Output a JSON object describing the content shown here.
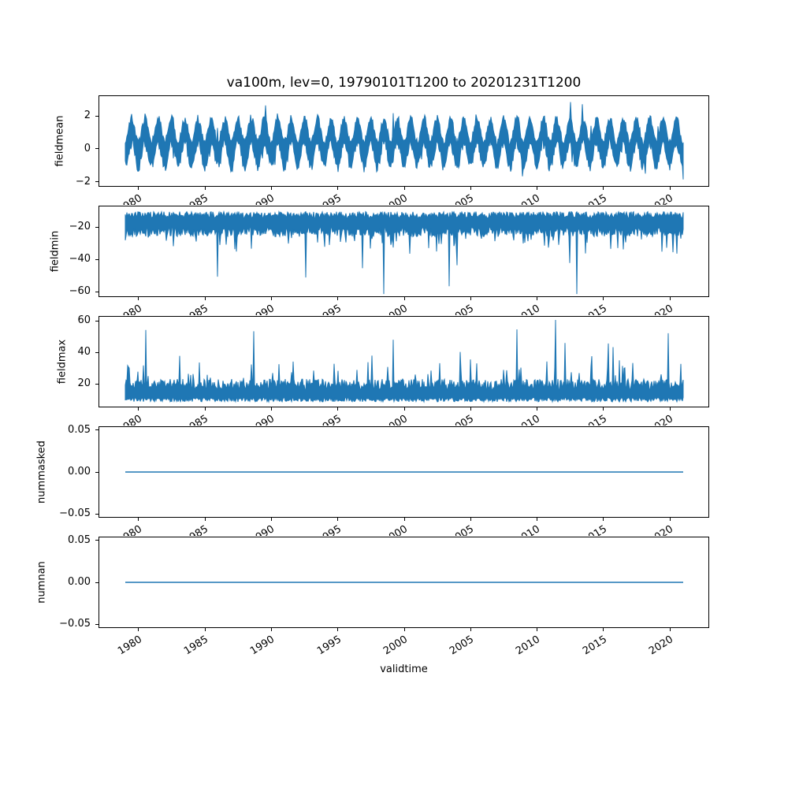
{
  "figure": {
    "title": "va100m, lev=0, 19790101T1200 to 20201231T1200",
    "xlabel": "validtime",
    "background": "#ffffff",
    "line_color": "#1f77b4",
    "spine_color": "#000000",
    "text_color": "#000000"
  },
  "x_axis": {
    "label": "validtime",
    "tick_values": [
      1980,
      1985,
      1990,
      1995,
      2000,
      2005,
      2010,
      2015,
      2020
    ],
    "tick_labels": [
      "1980",
      "1985",
      "1990",
      "1995",
      "2000",
      "2005",
      "2010",
      "2015",
      "2020"
    ],
    "data_start_year": 1979.0,
    "data_end_year": 2021.0,
    "xlim": [
      1976.9,
      2023.1
    ],
    "tick_rotation_deg": 32
  },
  "chart_data": [
    {
      "type": "line",
      "name": "fieldmean",
      "ylabel": "fieldmean",
      "ytick_values": [
        -2,
        0,
        2
      ],
      "ytick_labels": [
        "−2",
        "0",
        "2"
      ],
      "ylim": [
        -2.29,
        3.24
      ],
      "x_range": [
        1979.0,
        2021.0
      ],
      "summary": "dense noisy seasonal signal oscillating roughly between -1.7 and 2.5, annual cycle, occasional peaks near 3",
      "series": {
        "kind": "seasonal_band",
        "seed": 7,
        "mean": 0.5,
        "seasonal_amp": 0.85,
        "season_phase": 0.77,
        "half_width": [
          0.5,
          1.0
        ],
        "up_factor": 0.85,
        "lo_factor": 1.15,
        "up_spike": [
          0.012,
          0.7,
          1.2
        ],
        "lo_spike": [
          0.01,
          0.4,
          0.8
        ],
        "clip": [
          -2.15,
          3.05
        ]
      }
    },
    {
      "type": "line",
      "name": "fieldmin",
      "ylabel": "fieldmin",
      "ytick_values": [
        -20,
        -40,
        -60
      ],
      "ytick_labels": [
        "−20",
        "−40",
        "−60"
      ],
      "ylim": [
        -63.4,
        -6.8
      ],
      "x_range": [
        1979.0,
        2021.0
      ],
      "summary": "dense noisy band mostly between -26 and -11 with sparse downward spikes reaching about -60",
      "series": {
        "kind": "band_spikes_down",
        "seed": 13,
        "upper": [
          -14.5,
          -10.5
        ],
        "lower": [
          -26,
          -20
        ],
        "mid_spike": [
          0.08,
          4,
          12
        ],
        "big_spike": [
          0.015,
          16,
          40
        ],
        "clip_low": -61.5
      }
    },
    {
      "type": "line",
      "name": "fieldmax",
      "ylabel": "fieldmax",
      "ytick_values": [
        20,
        40,
        60
      ],
      "ytick_labels": [
        "20",
        "40",
        "60"
      ],
      "ylim": [
        5,
        63
      ],
      "x_range": [
        1979.0,
        2021.0
      ],
      "summary": "dense noisy band mostly between 9 and 23 with frequent upward spikes to 25-35 and sparse spikes reaching about 60",
      "series": {
        "kind": "band_spikes_up",
        "seed": 21,
        "lower": [
          8.5,
          11.5
        ],
        "upper": [
          16,
          23
        ],
        "mid_spike": [
          0.1,
          4,
          14
        ],
        "big_spike": [
          0.02,
          16,
          40
        ],
        "clip_high": 60.5
      }
    },
    {
      "type": "line",
      "name": "nummasked",
      "ylabel": "nummasked",
      "ytick_values": [
        0.05,
        0.0,
        -0.05
      ],
      "ytick_labels": [
        "0.05",
        "0.00",
        "−0.05"
      ],
      "ylim": [
        -0.0547,
        0.0547
      ],
      "x_range": [
        1979.0,
        2021.0
      ],
      "summary": "constant zero for entire period",
      "series": {
        "kind": "constant",
        "seed": 0,
        "value": 0.0
      }
    },
    {
      "type": "line",
      "name": "numnan",
      "ylabel": "numnan",
      "ytick_values": [
        0.05,
        0.0,
        -0.05
      ],
      "ytick_labels": [
        "0.05",
        "0.00",
        "−0.05"
      ],
      "ylim": [
        -0.0547,
        0.0547
      ],
      "x_range": [
        1979.0,
        2021.0
      ],
      "summary": "constant zero for entire period",
      "series": {
        "kind": "constant",
        "seed": 0,
        "value": 0.0
      }
    }
  ]
}
